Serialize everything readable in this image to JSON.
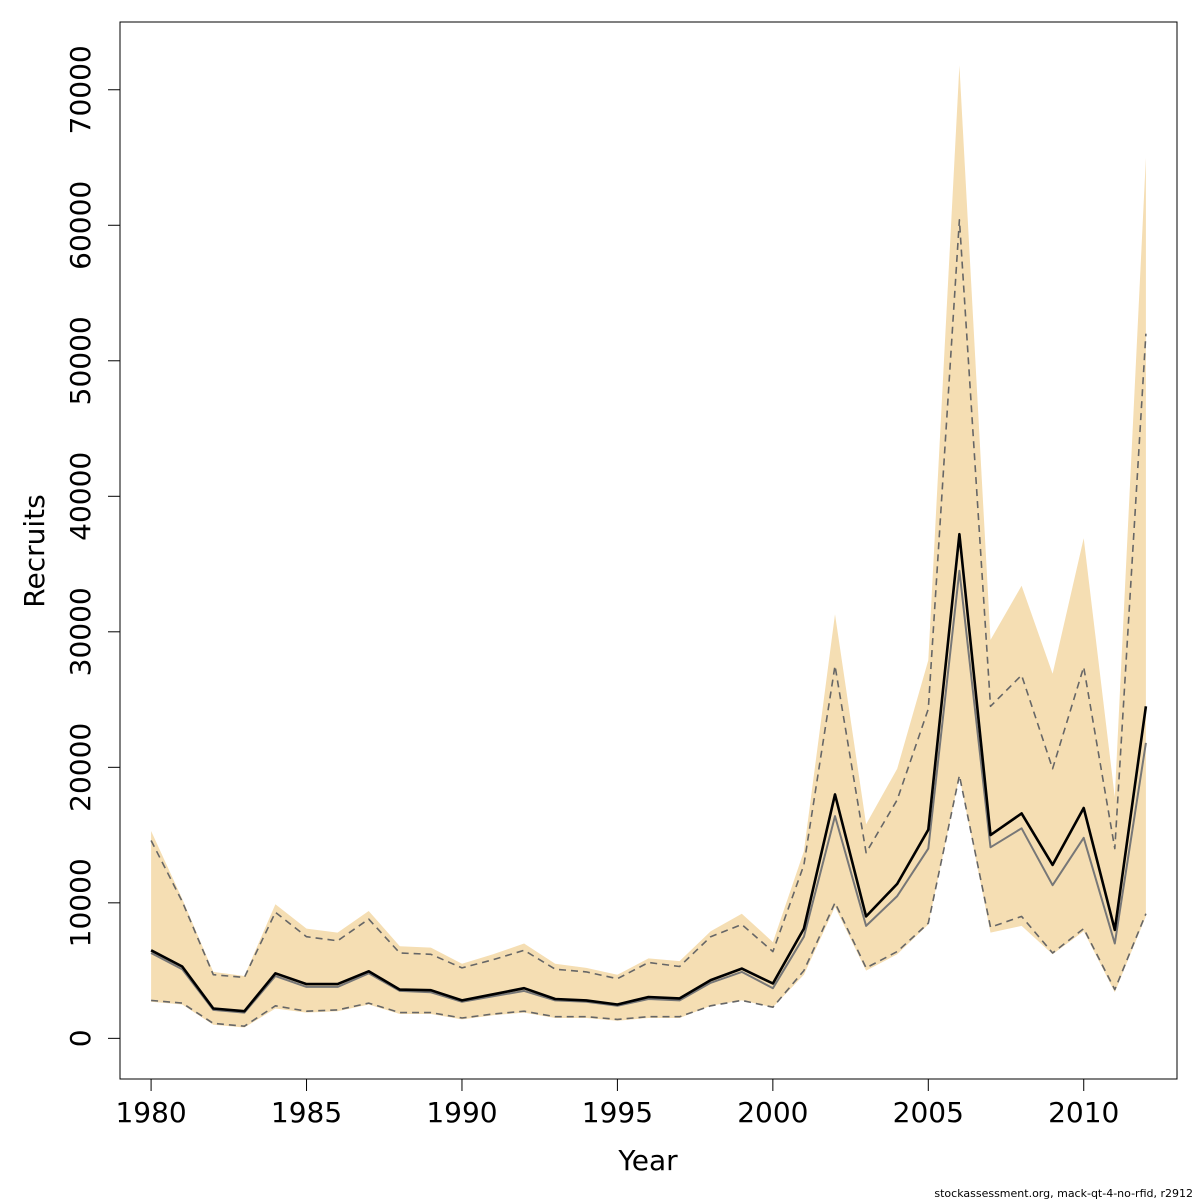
{
  "chart_data": {
    "type": "line",
    "xlabel": "Year",
    "ylabel": "Recruits",
    "footer": "stockassessment.org, mack-qt-4-no-rfid, r2912",
    "xlim": [
      1979,
      2013
    ],
    "ylim": [
      -3000,
      75000
    ],
    "xticks": [
      1980,
      1985,
      1990,
      1995,
      2000,
      2005,
      2010
    ],
    "yticks": [
      0,
      10000,
      20000,
      30000,
      40000,
      50000,
      60000,
      70000
    ],
    "grid": false,
    "x": [
      1980,
      1981,
      1982,
      1983,
      1984,
      1985,
      1986,
      1987,
      1988,
      1989,
      1990,
      1991,
      1992,
      1993,
      1994,
      1995,
      1996,
      1997,
      1998,
      1999,
      2000,
      2001,
      2002,
      2003,
      2004,
      2005,
      2006,
      2007,
      2008,
      2009,
      2010,
      2011,
      2012
    ],
    "series": [
      {
        "role": "shaded-band",
        "color": "#f5deb3",
        "upper": [
          15300,
          10300,
          4900,
          4600,
          9900,
          8100,
          7800,
          9400,
          6800,
          6700,
          5500,
          6200,
          7000,
          5500,
          5200,
          4700,
          5900,
          5700,
          7900,
          9200,
          7100,
          13800,
          31300,
          15800,
          19900,
          27900,
          71800,
          29400,
          33400,
          26900,
          36900,
          17800,
          65000
        ],
        "lower": [
          2700,
          2500,
          1000,
          800,
          2200,
          1900,
          2000,
          2500,
          1800,
          1800,
          1400,
          1700,
          1900,
          1500,
          1500,
          1300,
          1500,
          1500,
          2400,
          2800,
          2300,
          4700,
          9700,
          5000,
          6200,
          8400,
          19300,
          7800,
          8300,
          6200,
          7900,
          3400,
          9000
        ]
      },
      {
        "role": "upper-dashed",
        "color": "#666666",
        "values": [
          14600,
          10100,
          4700,
          4500,
          9300,
          7500,
          7200,
          8800,
          6300,
          6200,
          5200,
          5800,
          6500,
          5100,
          4900,
          4400,
          5600,
          5300,
          7500,
          8400,
          6400,
          12800,
          27500,
          13700,
          17600,
          24300,
          60400,
          24500,
          26800,
          19900,
          27400,
          14000,
          52000
        ]
      },
      {
        "role": "lower-dashed",
        "color": "#666666",
        "values": [
          2800,
          2600,
          1100,
          900,
          2400,
          2000,
          2100,
          2600,
          1900,
          1900,
          1500,
          1800,
          2000,
          1600,
          1600,
          1400,
          1600,
          1600,
          2400,
          2800,
          2300,
          5000,
          10000,
          5200,
          6400,
          8500,
          19400,
          8200,
          9000,
          6300,
          8100,
          3600,
          9200
        ]
      },
      {
        "role": "grey-line",
        "color": "#777777",
        "values": [
          6300,
          5100,
          2100,
          1900,
          4600,
          3800,
          3800,
          4800,
          3500,
          3400,
          2700,
          3100,
          3500,
          2800,
          2700,
          2400,
          2900,
          2800,
          4100,
          4900,
          3700,
          7500,
          16400,
          8300,
          10500,
          14000,
          34500,
          14100,
          15500,
          11300,
          14800,
          7000,
          21800
        ]
      },
      {
        "role": "main-line",
        "color": "#000000",
        "values": [
          6500,
          5300,
          2200,
          2000,
          4800,
          4000,
          4000,
          4950,
          3600,
          3550,
          2800,
          3250,
          3700,
          2900,
          2800,
          2500,
          3050,
          2950,
          4300,
          5150,
          4050,
          8100,
          18000,
          9000,
          11400,
          15400,
          37200,
          15000,
          16600,
          12800,
          17000,
          8000,
          24500
        ]
      }
    ]
  }
}
